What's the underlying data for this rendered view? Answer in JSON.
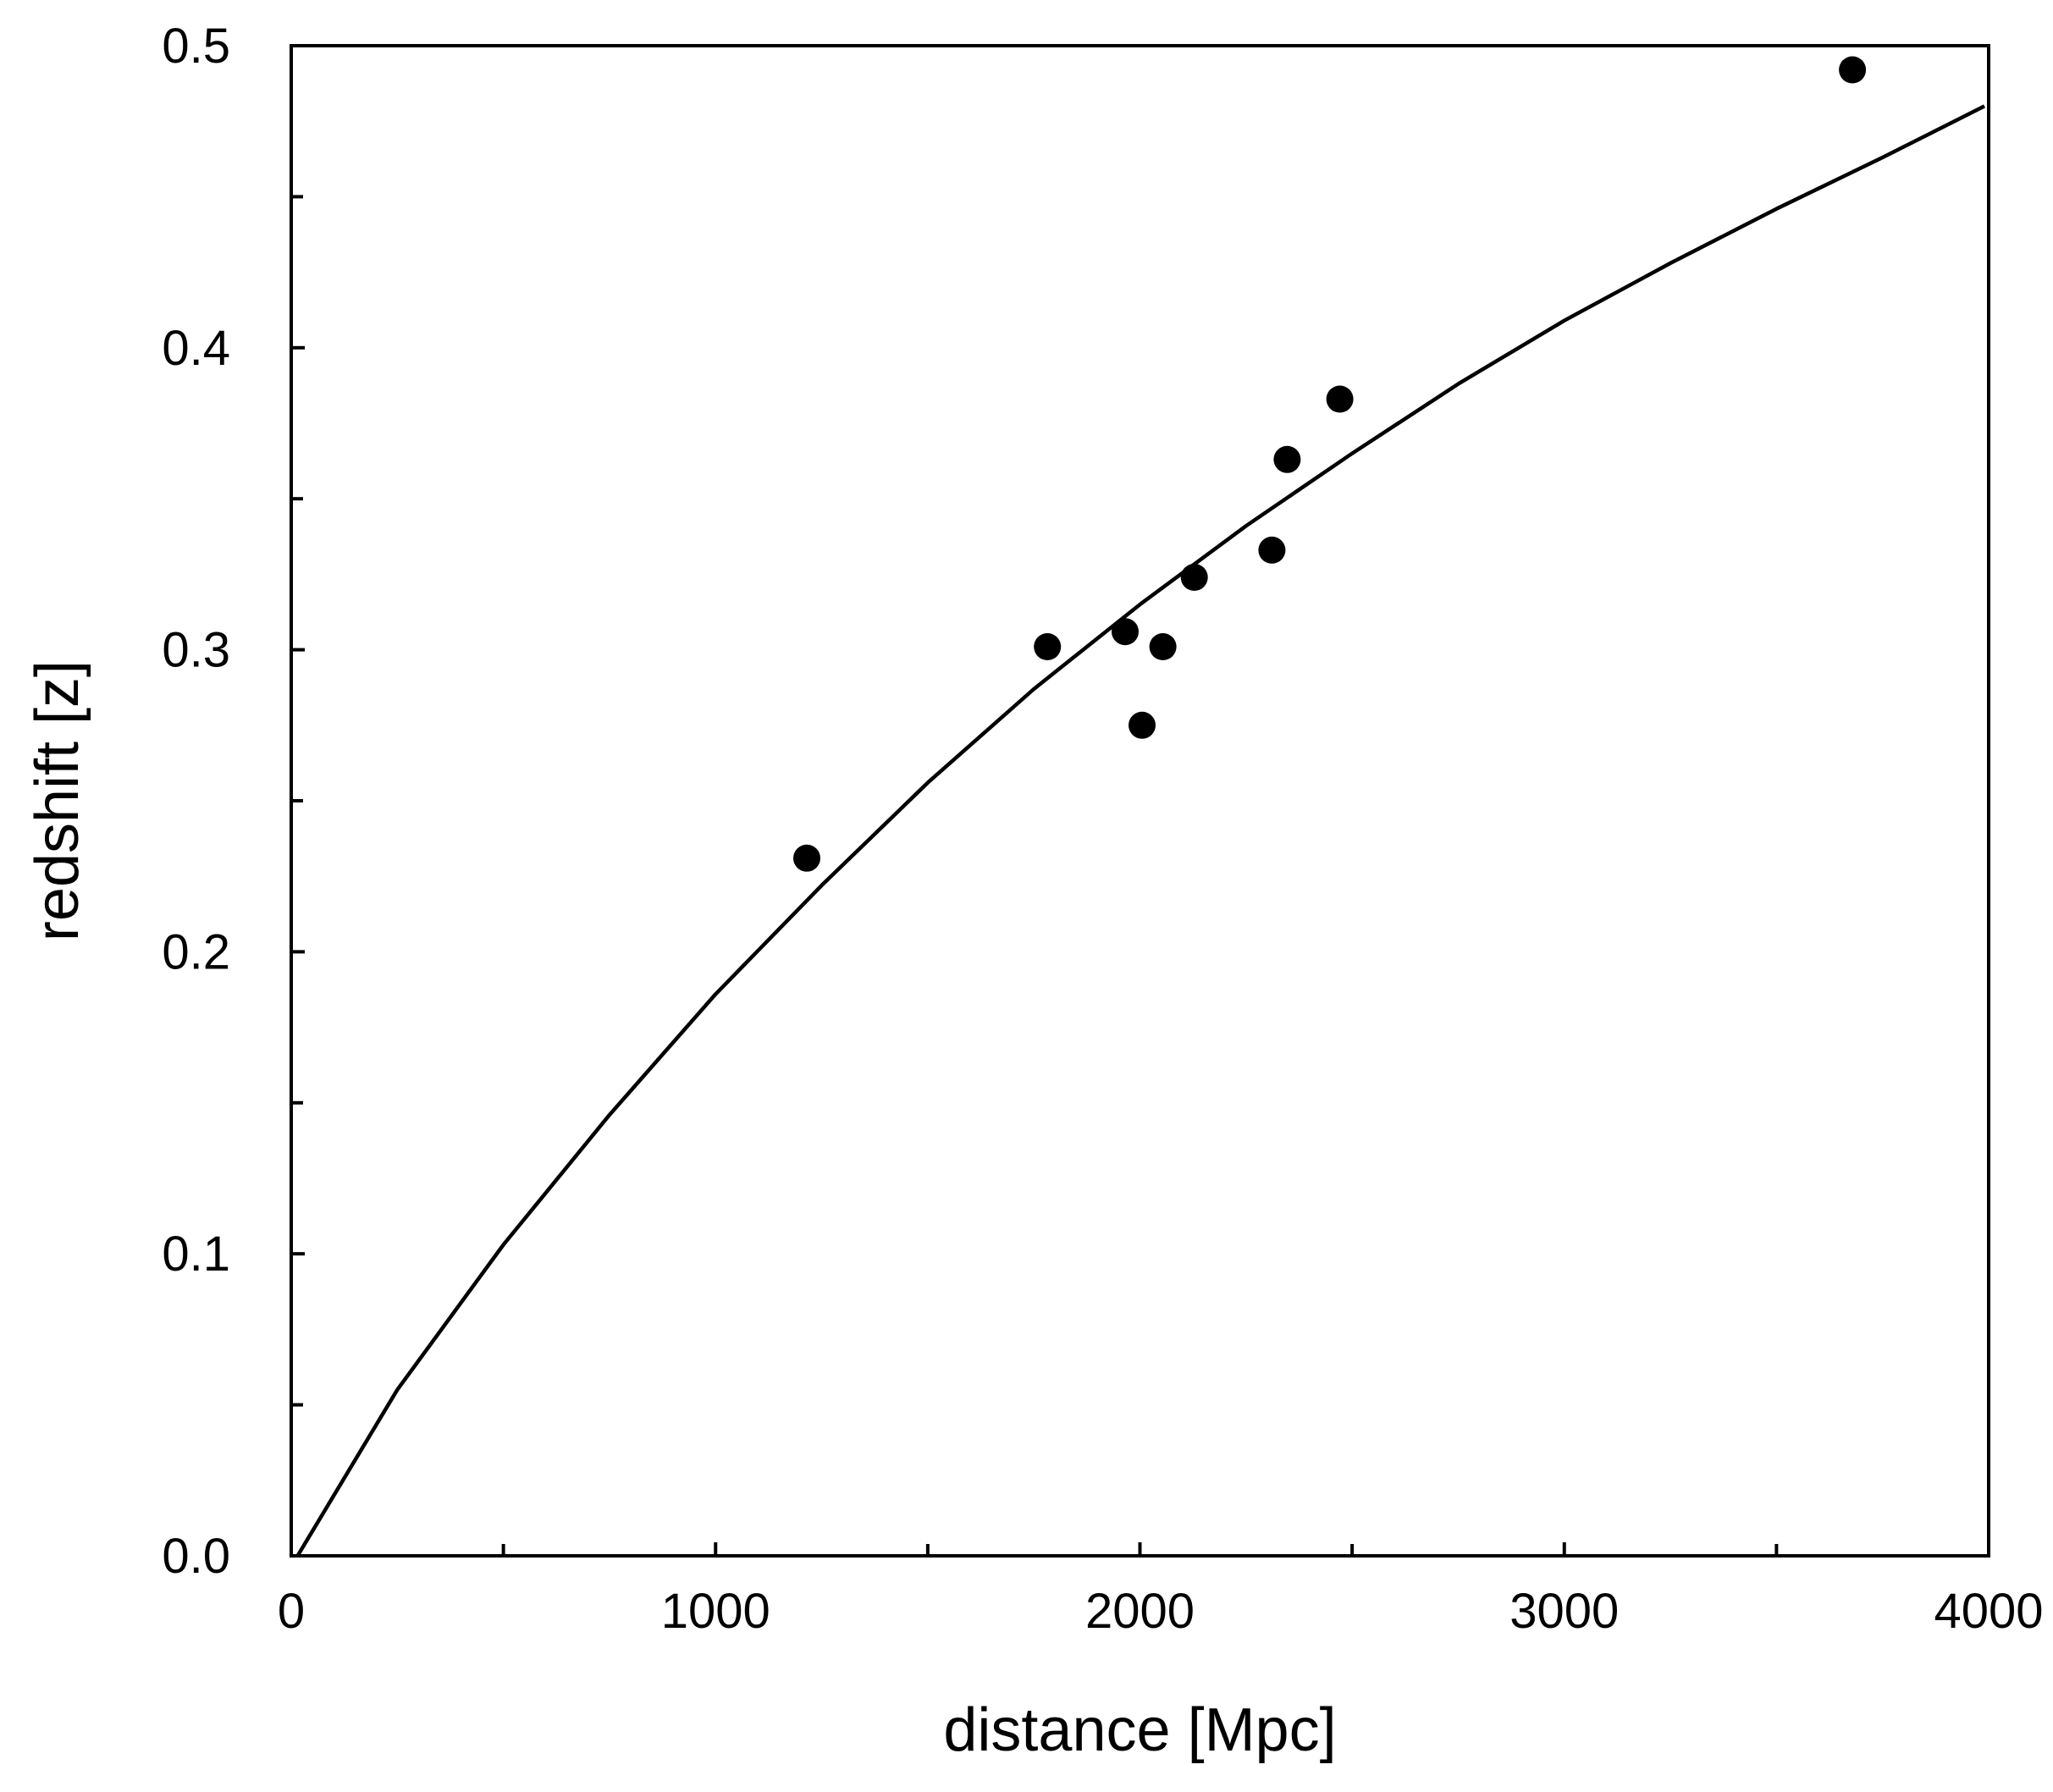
{
  "chart_data": {
    "type": "scatter",
    "title": "",
    "xlabel": "distance [Mpc]",
    "ylabel": "redshift [z]",
    "xlim": [
      0,
      4000
    ],
    "ylim": [
      0,
      0.5
    ],
    "x_ticks": [
      0,
      1000,
      2000,
      3000,
      4000
    ],
    "x_tick_labels": [
      "0",
      "1000",
      "2000",
      "3000",
      "4000"
    ],
    "x_minor_ticks": [
      500,
      1500,
      2500,
      3500
    ],
    "y_ticks": [
      0.0,
      0.1,
      0.2,
      0.3,
      0.4,
      0.5
    ],
    "y_tick_labels": [
      "0.0",
      "0.1",
      "0.2",
      "0.3",
      "0.4",
      "0.5"
    ],
    "y_minor_ticks": [
      0.05,
      0.15,
      0.25,
      0.35,
      0.45
    ],
    "grid": false,
    "legend": "none",
    "series": [
      {
        "kind": "scatter",
        "color": "#000000",
        "points": [
          {
            "x": 1215,
            "y": 0.231
          },
          {
            "x": 1782,
            "y": 0.301
          },
          {
            "x": 1965,
            "y": 0.306
          },
          {
            "x": 2005,
            "y": 0.275
          },
          {
            "x": 2054,
            "y": 0.301
          },
          {
            "x": 2128,
            "y": 0.324
          },
          {
            "x": 2311,
            "y": 0.333
          },
          {
            "x": 2347,
            "y": 0.363
          },
          {
            "x": 2471,
            "y": 0.383
          },
          {
            "x": 3679,
            "y": 0.492
          }
        ]
      },
      {
        "kind": "line",
        "color": "#000000",
        "points": [
          {
            "x": 15,
            "y": 0.0
          },
          {
            "x": 250,
            "y": 0.055
          },
          {
            "x": 500,
            "y": 0.103
          },
          {
            "x": 750,
            "y": 0.146
          },
          {
            "x": 1000,
            "y": 0.186
          },
          {
            "x": 1250,
            "y": 0.222
          },
          {
            "x": 1500,
            "y": 0.256
          },
          {
            "x": 1750,
            "y": 0.287
          },
          {
            "x": 2000,
            "y": 0.315
          },
          {
            "x": 2250,
            "y": 0.341
          },
          {
            "x": 2500,
            "y": 0.365
          },
          {
            "x": 2750,
            "y": 0.388
          },
          {
            "x": 3000,
            "y": 0.409
          },
          {
            "x": 3250,
            "y": 0.428
          },
          {
            "x": 3500,
            "y": 0.446
          },
          {
            "x": 3750,
            "y": 0.463
          },
          {
            "x": 3990,
            "y": 0.48
          }
        ]
      }
    ]
  }
}
